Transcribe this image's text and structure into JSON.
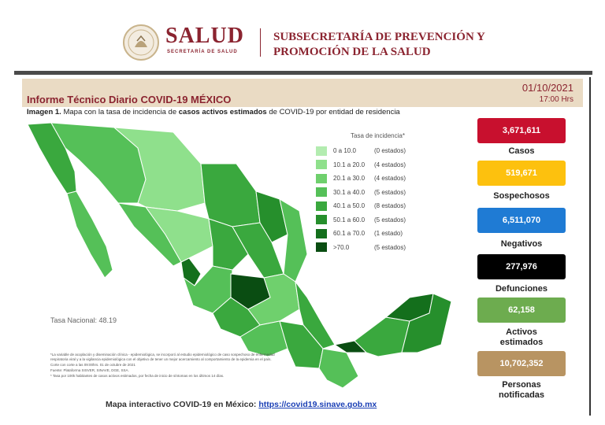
{
  "header": {
    "logo_main": "SALUD",
    "logo_sub": "SECRETARÍA DE SALUD",
    "subsecretaria_line1": "SUBSECRETARÍA DE PREVENCIÓN Y",
    "subsecretaria_line2": "PROMOCIÓN DE LA SALUD"
  },
  "report": {
    "title": "Informe Técnico Diario COVID-19 MÉXICO",
    "date": "01/10/2021",
    "time": "17:00 Hrs",
    "image_label": "Imagen 1.",
    "image_caption_a": "Mapa con la tasa de incidencia de",
    "image_caption_bold": "casos activos estimados",
    "image_caption_b": "de COVID-19 por entidad de residencia"
  },
  "legend": {
    "title": "Tasa de incidencia*",
    "items": [
      {
        "range": "0 a 10.0",
        "count": "(0 estados)",
        "color": "#b3ecb0"
      },
      {
        "range": "10.1 a 20.0",
        "count": "(4 estados)",
        "color": "#8fe08c"
      },
      {
        "range": "20.1 a 30.0",
        "count": "(4 estados)",
        "color": "#6fd06d"
      },
      {
        "range": "30.1 a 40.0",
        "count": "(5 estados)",
        "color": "#55c058"
      },
      {
        "range": "40.1 a 50.0",
        "count": "(8 estados)",
        "color": "#3aa83e"
      },
      {
        "range": "50.1 a 60.0",
        "count": "(5 estados)",
        "color": "#268f2c"
      },
      {
        "range": "60.1 a 70.0",
        "count": "(1 estado)",
        "color": "#146f1c"
      },
      {
        "range": ">70.0",
        "count": "(5 estados)",
        "color": "#0a4d12"
      }
    ]
  },
  "tasa_nacional": "Tasa Nacional: 48.19",
  "notes": [
    "*La variable de acoplación y diseminación clínica - epidemiológica, se incorporó al estudio epidemiológico de caso sospechoso de enfermedad respiratoria viral y a la vigilancia epidemiológica con el objetivo de tener un mejor acercamiento al comportamiento de la epidemia en el país.",
    "Corte con corte a las 09:00hrs. 01 de octubre de 2021",
    "Fuente: Plataforma SISVER, SINAVE, DGE, SSA.",
    "* Tasa por 100k habitantes de casos activos estimados, por fecha de inicio de síntomas en los últimos 14 días."
  ],
  "stats": [
    {
      "value": "3,671,611",
      "label": "Casos",
      "bg": "#c8102e",
      "fg": "#ffffff"
    },
    {
      "value": "519,671",
      "label": "Sospechosos",
      "bg": "#fdc10e",
      "fg": "#ffffff"
    },
    {
      "value": "6,511,070",
      "label": "Negativos",
      "bg": "#1f7bd4",
      "fg": "#ffffff"
    },
    {
      "value": "277,976",
      "label": "Defunciones",
      "bg": "#000000",
      "fg": "#ffffff"
    },
    {
      "value": "62,158",
      "label": "Activos estimados",
      "bg": "#6dac4f",
      "fg": "#ffffff"
    },
    {
      "value": "10,702,352",
      "label": "Personas notificadas",
      "bg": "#b89462",
      "fg": "#ffffff"
    }
  ],
  "footer": {
    "text": "Mapa interactivo COVID-19 en México:",
    "link": "https://covid19.sinave.gob.mx"
  }
}
